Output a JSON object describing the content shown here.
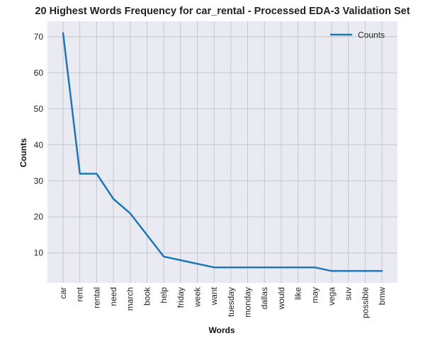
{
  "chart_data": {
    "type": "line",
    "title": "20 Highest Words Frequency for car_rental - Processed EDA-3 Validation Set",
    "xlabel": "Words",
    "ylabel": "Counts",
    "categories": [
      "car",
      "rent",
      "rental",
      "need",
      "march",
      "book",
      "help",
      "friday",
      "week",
      "want",
      "tuesday",
      "monday",
      "dallas",
      "would",
      "like",
      "may",
      "vega",
      "suv",
      "possible",
      "bmw"
    ],
    "series": [
      {
        "name": "Counts",
        "color": "#1f77b4",
        "values": [
          71,
          32,
          32,
          25,
          21,
          15,
          9,
          8,
          7,
          6,
          6,
          6,
          6,
          6,
          6,
          6,
          5,
          5,
          5,
          5
        ]
      }
    ],
    "yticks": [
      10,
      20,
      30,
      40,
      50,
      60,
      70
    ],
    "ylim": [
      1.7,
      74.3
    ],
    "grid": true,
    "legend": "top-right",
    "colors": {
      "plot_background": "#eaeaf2",
      "grid": "#c0c0c0"
    }
  }
}
